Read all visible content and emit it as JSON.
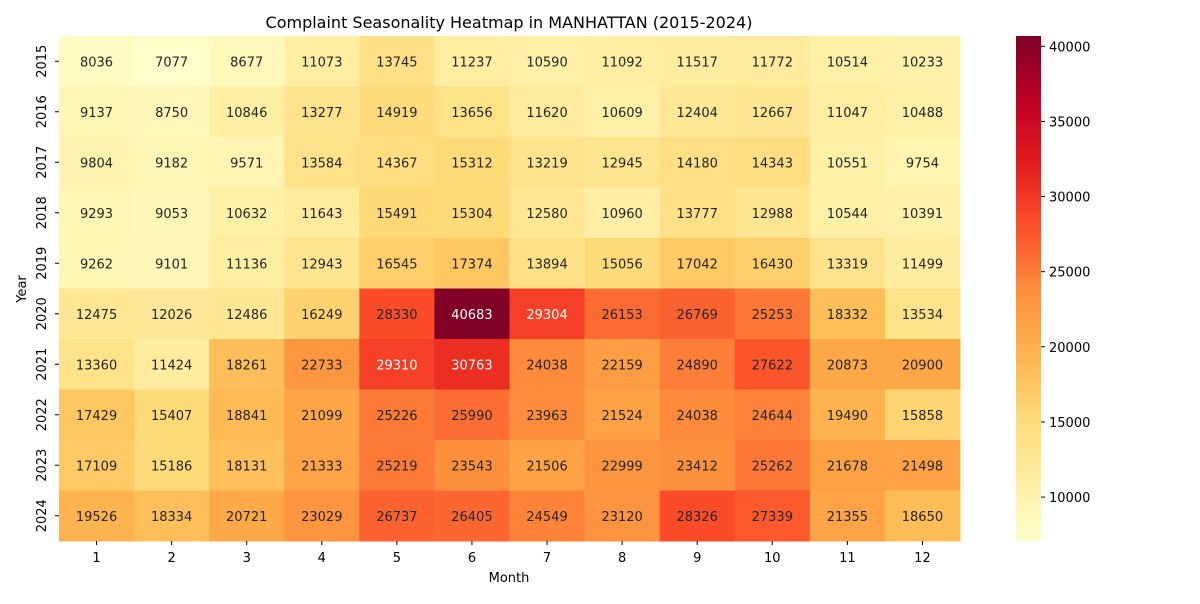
{
  "chart_data": {
    "type": "heatmap",
    "title": "Complaint Seasonality Heatmap in MANHATTAN (2015-2024)",
    "xlabel": "Month",
    "ylabel": "Year",
    "x_categories": [
      "1",
      "2",
      "3",
      "4",
      "5",
      "6",
      "7",
      "8",
      "9",
      "10",
      "11",
      "12"
    ],
    "y_categories": [
      "2015",
      "2016",
      "2017",
      "2018",
      "2019",
      "2020",
      "2021",
      "2022",
      "2023",
      "2024"
    ],
    "values": [
      [
        8036,
        7077,
        8677,
        11073,
        13745,
        11237,
        10590,
        11092,
        11517,
        11772,
        10514,
        10233
      ],
      [
        9137,
        8750,
        10846,
        13277,
        14919,
        13656,
        11620,
        10609,
        12404,
        12667,
        11047,
        10488
      ],
      [
        9804,
        9182,
        9571,
        13584,
        14367,
        15312,
        13219,
        12945,
        14180,
        14343,
        10551,
        9754
      ],
      [
        9293,
        9053,
        10632,
        11643,
        15491,
        15304,
        12580,
        10960,
        13777,
        12988,
        10544,
        10391
      ],
      [
        9262,
        9101,
        11136,
        12943,
        16545,
        17374,
        13894,
        15056,
        17042,
        16430,
        13319,
        11499
      ],
      [
        12475,
        12026,
        12486,
        16249,
        28330,
        40683,
        29304,
        26153,
        26769,
        25253,
        18332,
        13534
      ],
      [
        13360,
        11424,
        18261,
        22733,
        29310,
        30763,
        24038,
        22159,
        24890,
        27622,
        20873,
        20900
      ],
      [
        17429,
        15407,
        18841,
        21099,
        25226,
        25990,
        23963,
        21524,
        24038,
        24644,
        19490,
        15858
      ],
      [
        17109,
        15186,
        18131,
        21333,
        25219,
        23543,
        21506,
        22999,
        23412,
        25262,
        21678,
        21498
      ],
      [
        19526,
        18334,
        20721,
        23029,
        26737,
        26405,
        24549,
        23120,
        28326,
        27339,
        21355,
        18650
      ]
    ],
    "colorbar": {
      "colormap": "YlOrRd",
      "min": 7077,
      "max": 40683,
      "ticks": [
        10000,
        15000,
        20000,
        25000,
        30000,
        35000,
        40000
      ]
    }
  }
}
